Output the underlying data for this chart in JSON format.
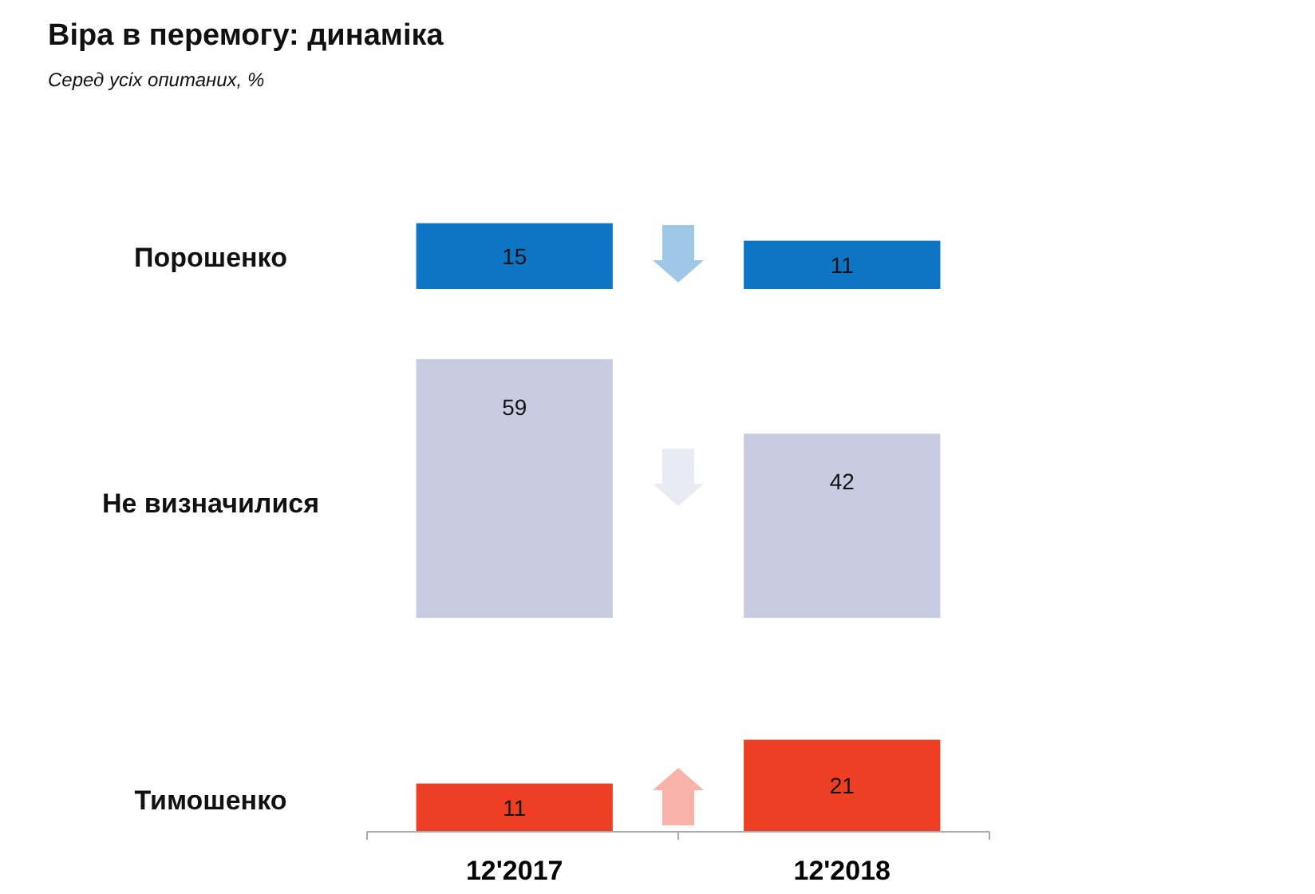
{
  "chart_data": [
    {
      "type": "bar",
      "title": "Віра в перемогу: динаміка",
      "subtitle": "Серед усіх опитаних, %",
      "ylabel": "Порошенко",
      "categories": [
        null,
        null
      ],
      "values": [
        15,
        11
      ],
      "color": "#0e75c4",
      "data_labels": true,
      "tick_labels": false
    },
    {
      "type": "bar",
      "ylabel": "Не визначилися",
      "categories": [
        null,
        null
      ],
      "values": [
        59,
        42
      ],
      "color": "#c9cbe3",
      "data_labels": true,
      "tick_labels": false
    },
    {
      "type": "bar",
      "ylabel": "Тимошенко",
      "categories": [
        "12'2017",
        "12'2018"
      ],
      "values": [
        11,
        21
      ],
      "color": "#ee3f24",
      "data_labels": true,
      "tick_labels": "x"
    }
  ]
}
